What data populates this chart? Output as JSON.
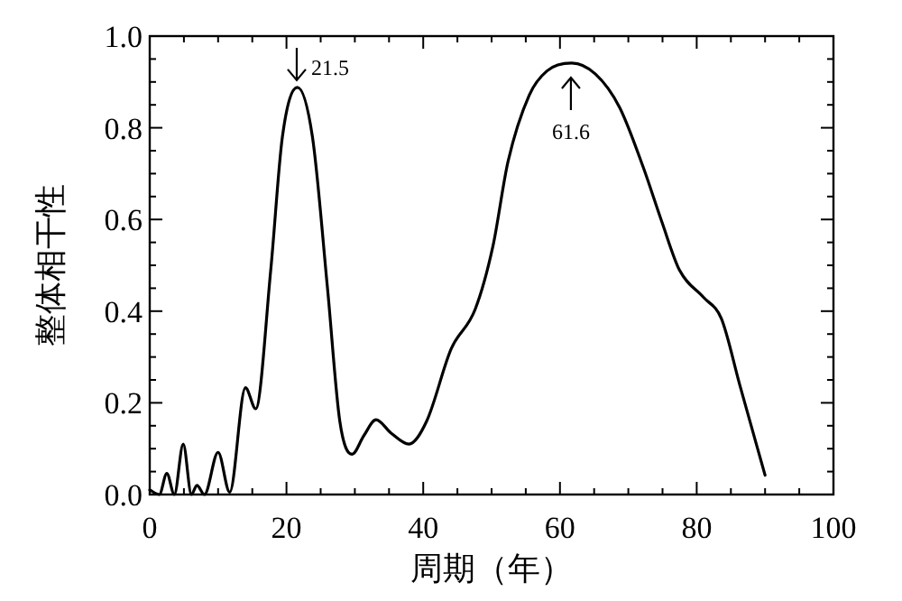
{
  "chart_data": {
    "type": "line",
    "xlabel": "周期（年）",
    "ylabel": "整体相干性",
    "x": [
      0,
      1.4,
      2.5,
      3.6,
      4.9,
      6.1,
      6.9,
      8,
      10,
      11.7,
      14,
      15.5,
      17.7,
      19.4,
      21.6,
      23.8,
      26,
      27.8,
      29.6,
      31.3,
      33.1,
      35.3,
      37.9,
      40.5,
      44.1,
      47.6,
      50.2,
      52.4,
      55.5,
      58.1,
      61.7,
      65.2,
      68.7,
      72.2,
      74.9,
      77.5,
      81,
      83.6,
      86.3,
      90
    ],
    "series": [
      {
        "color": "#000000",
        "values": [
          0.01,
          0,
          0.046,
          0,
          0.11,
          0,
          0.02,
          0,
          0.092,
          0.005,
          0.233,
          0.187,
          0.49,
          0.78,
          0.888,
          0.78,
          0.45,
          0.16,
          0.088,
          0.128,
          0.163,
          0.134,
          0.11,
          0.16,
          0.318,
          0.404,
          0.542,
          0.726,
          0.871,
          0.924,
          0.941,
          0.917,
          0.845,
          0.713,
          0.595,
          0.489,
          0.43,
          0.384,
          0.239,
          0.042
        ]
      }
    ],
    "xlim": [
      0,
      100
    ],
    "ylim": [
      0,
      1
    ],
    "xticks": [
      0,
      20,
      40,
      60,
      80,
      100
    ],
    "yticks": [
      {
        "value": 0,
        "label": "0.0"
      },
      {
        "value": 0.2,
        "label": "0.2"
      },
      {
        "value": 0.4,
        "label": "0.4"
      },
      {
        "value": 0.6,
        "label": "0.6"
      },
      {
        "value": 0.8,
        "label": "0.8"
      },
      {
        "value": 1,
        "label": "1.0"
      }
    ],
    "annotations": [
      {
        "text": "21.5",
        "x": 21.5,
        "y": 0.888
      },
      {
        "text": "61.6",
        "x": 61.6,
        "y": 0.941
      }
    ],
    "grid": false,
    "marker": "none",
    "line_style": "solid"
  }
}
